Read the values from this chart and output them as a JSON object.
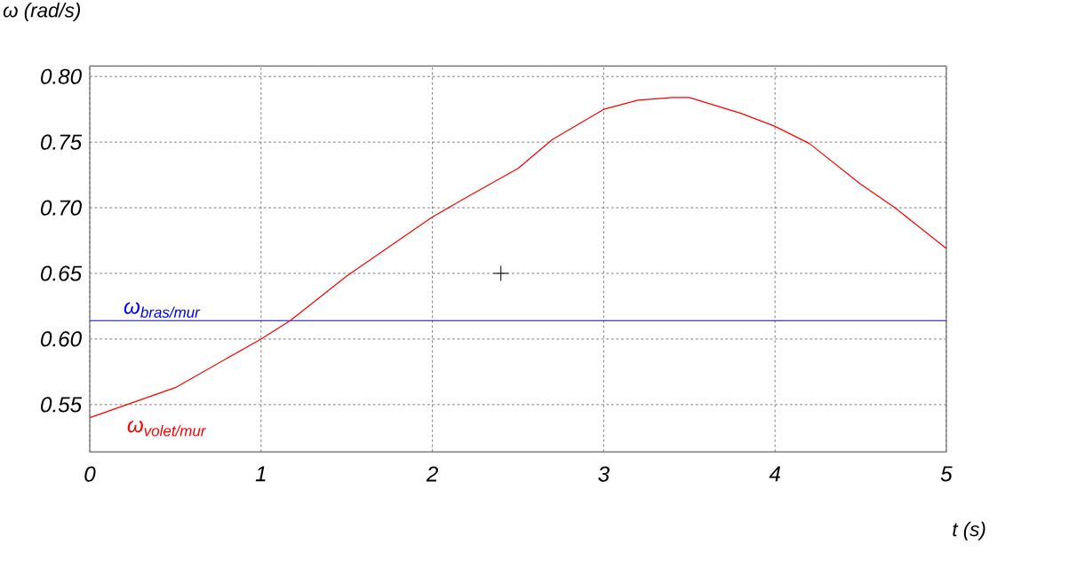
{
  "chart_data": {
    "type": "line",
    "xlabel": "t (s)",
    "ylabel": "ω  (rad/s)",
    "xlim": [
      0,
      5
    ],
    "ylim": [
      0.514,
      0.808
    ],
    "xticks": [
      0,
      1,
      2,
      3,
      4,
      5
    ],
    "yticks": [
      {
        "value": 0.55,
        "label": "0.55"
      },
      {
        "value": 0.6,
        "label": "0.60"
      },
      {
        "value": 0.65,
        "label": "0.65"
      },
      {
        "value": 0.7,
        "label": "0.70"
      },
      {
        "value": 0.75,
        "label": "0.75"
      },
      {
        "value": 0.8,
        "label": "0.80"
      }
    ],
    "grid": true,
    "line_style": "solid",
    "series": [
      {
        "name": "ω$_{bras/mur}$",
        "color": "#0000ff",
        "x": [
          0,
          5
        ],
        "values": [
          0.614,
          0.614
        ]
      },
      {
        "name": "ω$_{volet/mur}$",
        "color": "#ff0000",
        "x": [
          0,
          0.5,
          1,
          1.17,
          1.5,
          2,
          2.2,
          2.5,
          2.7,
          3,
          3.2,
          3.4,
          3.5,
          3.8,
          4,
          4.2,
          4.5,
          4.7,
          5
        ],
        "values": [
          0.54,
          0.563,
          0.6,
          0.614,
          0.648,
          0.693,
          0.708,
          0.73,
          0.752,
          0.775,
          0.782,
          0.784,
          0.784,
          0.772,
          0.762,
          0.749,
          0.718,
          0.7,
          0.669
        ]
      },
      {
        "type": "scatter",
        "marker": "cross",
        "color": "#000000",
        "x": [
          2.4
        ],
        "values": [
          0.65
        ]
      }
    ]
  }
}
